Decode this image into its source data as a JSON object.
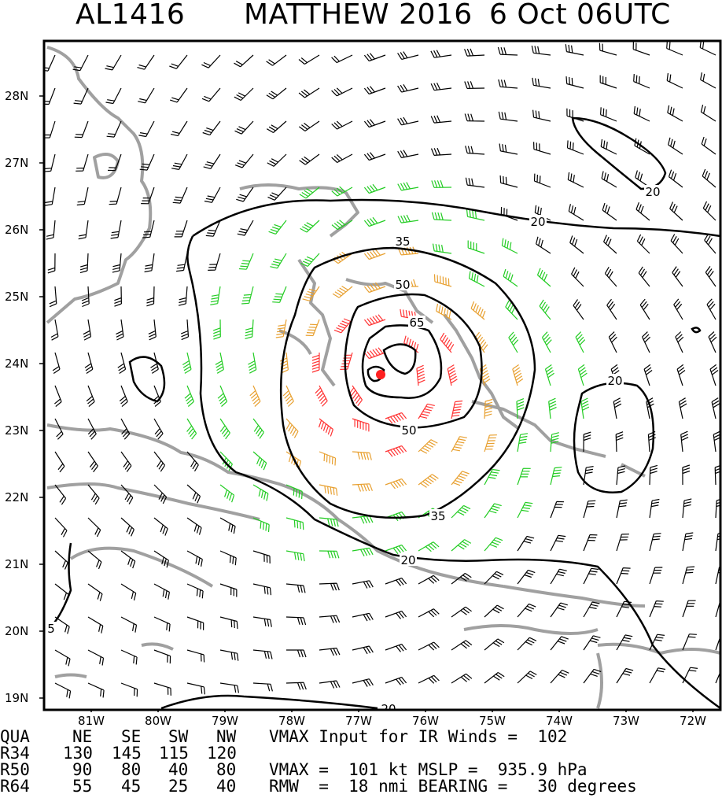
{
  "header": {
    "storm_id": "AL1416",
    "storm_name": "MATTHEW 2016",
    "time": "6 Oct 06UTC"
  },
  "map": {
    "lat_labels": [
      "28N",
      "27N",
      "26N",
      "25N",
      "24N",
      "23N",
      "22N",
      "21N",
      "20N",
      "19N"
    ],
    "lon_labels": [
      "81W",
      "80W",
      "79W",
      "78W",
      "77W",
      "76W",
      "75W",
      "74W",
      "73W",
      "72W"
    ],
    "contour_labels": [
      "20",
      "20",
      "20",
      "35",
      "35",
      "50",
      "50",
      "65",
      "20",
      "20",
      "5"
    ],
    "center": {
      "lat": 23.8,
      "lon": -76.6
    },
    "colors": {
      "below_34kt": "#000000",
      "gale_34_49kt": "#22cc22",
      "storm_50_63kt": "#e8a030",
      "hurricane_64kt": "#ff3333",
      "coast": "#a0a0a0",
      "center": "#ff2020"
    }
  },
  "info": {
    "table_header": [
      "QUA",
      "NE",
      "SE",
      "SW",
      "NW"
    ],
    "rows": [
      {
        "label": "R34",
        "values": [
          "130",
          "145",
          "115",
          "120"
        ]
      },
      {
        "label": "R50",
        "values": [
          "90",
          "80",
          "40",
          "80"
        ]
      },
      {
        "label": "R64",
        "values": [
          "55",
          "45",
          "25",
          "40"
        ]
      }
    ],
    "vmax_ir_line": "VMAX Input for IR Winds =  102",
    "vmax_mslp_line": "VMAX =  101 kt MSLP =  935.9 hPa",
    "rmw_line": "RMW  =  18 nmi BEARING =   30 degrees"
  }
}
